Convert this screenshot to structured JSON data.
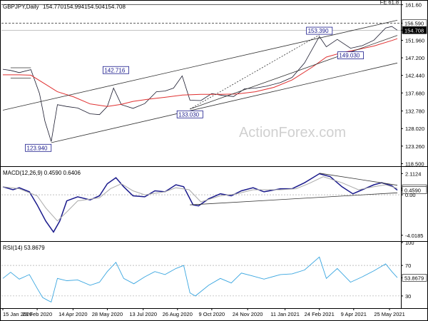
{
  "chart_data": [
    {
      "type": "line",
      "title": "GBPJPY,Daily",
      "ohlc": [
        "154.770",
        "154.994",
        "154.504",
        "154.708"
      ],
      "ylim": [
        118.0,
        162.5
      ],
      "yticks": [
        {
          "v": 161.6,
          "l": "161.60"
        },
        {
          "v": 156.59,
          "l": "156.590"
        },
        {
          "v": 154.708,
          "l": "154.708"
        },
        {
          "v": 151.96,
          "l": "151.960"
        },
        {
          "v": 147.2,
          "l": "147.200"
        },
        {
          "v": 142.44,
          "l": "142.440"
        },
        {
          "v": 137.68,
          "l": "137.680"
        },
        {
          "v": 132.78,
          "l": "132.780"
        },
        {
          "v": 128.02,
          "l": "128.020"
        },
        {
          "v": 123.26,
          "l": "123.260"
        },
        {
          "v": 118.5,
          "l": "118.500"
        }
      ],
      "annotations": [
        {
          "label": "123.940",
          "x": "2020-03-17",
          "y": 123.94
        },
        {
          "label": "142.716",
          "x": "2020-06-08",
          "y": 142.716
        },
        {
          "label": "133.030",
          "x": "2020-09-11",
          "y": 133.03
        },
        {
          "label": "153.390",
          "x": "2021-02-24",
          "y": 153.39
        },
        {
          "label": "149.030",
          "x": "2021-04-05",
          "y": 149.03
        },
        {
          "label": "FE 61.8",
          "y": 161.6
        }
      ],
      "watermark": "ActionForex.com",
      "series": [
        {
          "kind": "price",
          "values": [
            [
              "2020-01-15",
              144.1
            ],
            [
              "2020-01-25",
              143.8
            ],
            [
              "2020-02-05",
              143.2
            ],
            [
              "2020-02-20",
              144.0
            ],
            [
              "2020-03-02",
              137.5
            ],
            [
              "2020-03-09",
              130.0
            ],
            [
              "2020-03-17",
              124.5
            ],
            [
              "2020-03-25",
              134.5
            ],
            [
              "2020-04-06",
              134.0
            ],
            [
              "2020-04-20",
              133.6
            ],
            [
              "2020-05-06",
              132.0
            ],
            [
              "2020-05-18",
              131.8
            ],
            [
              "2020-05-28",
              134.0
            ],
            [
              "2020-06-05",
              139.0
            ],
            [
              "2020-06-15",
              134.5
            ],
            [
              "2020-06-30",
              133.5
            ],
            [
              "2020-07-15",
              134.8
            ],
            [
              "2020-07-30",
              138.0
            ],
            [
              "2020-08-10",
              138.2
            ],
            [
              "2020-08-21",
              139.0
            ],
            [
              "2020-09-01",
              142.3
            ],
            [
              "2020-09-11",
              135.7
            ],
            [
              "2020-09-25",
              135.6
            ],
            [
              "2020-10-09",
              137.5
            ],
            [
              "2020-10-23",
              137.0
            ],
            [
              "2020-11-06",
              136.7
            ],
            [
              "2020-11-20",
              138.8
            ],
            [
              "2020-12-04",
              139.0
            ],
            [
              "2020-12-18",
              139.5
            ],
            [
              "2021-01-05",
              140.5
            ],
            [
              "2021-01-20",
              141.9
            ],
            [
              "2021-02-05",
              145.8
            ],
            [
              "2021-02-24",
              153.0
            ],
            [
              "2021-03-05",
              150.2
            ],
            [
              "2021-03-19",
              152.2
            ],
            [
              "2021-04-05",
              149.8
            ],
            [
              "2021-04-20",
              150.5
            ],
            [
              "2021-05-05",
              152.0
            ],
            [
              "2021-05-20",
              155.3
            ],
            [
              "2021-05-28",
              155.7
            ],
            [
              "2021-06-04",
              154.7
            ]
          ]
        },
        {
          "kind": "ma",
          "values": [
            [
              "2020-01-15",
              142.6
            ],
            [
              "2020-02-05",
              142.6
            ],
            [
              "2020-02-20",
              142.5
            ],
            [
              "2020-03-10",
              140.0
            ],
            [
              "2020-03-25",
              138.0
            ],
            [
              "2020-04-15",
              136.6
            ],
            [
              "2020-05-06",
              134.7
            ],
            [
              "2020-05-28",
              134.0
            ],
            [
              "2020-06-15",
              134.6
            ],
            [
              "2020-06-30",
              135.4
            ],
            [
              "2020-07-20",
              136.0
            ],
            [
              "2020-08-10",
              136.5
            ],
            [
              "2020-09-01",
              137.1
            ],
            [
              "2020-09-25",
              137.3
            ],
            [
              "2020-10-20",
              137.3
            ],
            [
              "2020-11-10",
              137.4
            ],
            [
              "2020-12-04",
              138.0
            ],
            [
              "2020-12-28",
              139.2
            ],
            [
              "2021-01-20",
              141.2
            ],
            [
              "2021-02-15",
              144.7
            ],
            [
              "2021-03-05",
              147.4
            ],
            [
              "2021-03-25",
              148.6
            ],
            [
              "2021-04-15",
              149.5
            ],
            [
              "2021-05-05",
              150.4
            ],
            [
              "2021-05-28",
              151.9
            ],
            [
              "2021-06-04",
              152.4
            ]
          ]
        },
        {
          "kind": "channel-top",
          "values": [
            [
              "2020-01-15",
              133.0
            ],
            [
              "2021-06-04",
              157.4
            ]
          ]
        },
        {
          "kind": "channel-bottom",
          "values": [
            [
              "2020-03-17",
              124.2
            ],
            [
              "2021-06-04",
              145.8
            ]
          ]
        },
        {
          "kind": "mid-channel",
          "values": [
            [
              "2020-09-11",
              133.3
            ],
            [
              "2021-06-04",
              153.3
            ]
          ]
        },
        {
          "kind": "dotted",
          "values": [
            [
              "2020-09-11",
              133.3
            ],
            [
              "2021-02-24",
              153.4
            ]
          ]
        },
        {
          "kind": "level",
          "values": [
            [
              "2020-01-25",
              144.5
            ],
            [
              "2020-02-20",
              144.5
            ]
          ]
        },
        {
          "kind": "level",
          "values": [
            [
              "2020-01-25",
              141.7
            ],
            [
              "2020-02-20",
              141.7
            ]
          ]
        }
      ]
    },
    {
      "type": "line",
      "title": "MACD(12,26,9) 0.4590 0.6406",
      "ylim": [
        -4.6,
        2.7
      ],
      "yticks": [
        {
          "v": 2.1124,
          "l": "2.1124"
        },
        {
          "v": 0.6406,
          "l": "0.6406"
        },
        {
          "v": 0.459,
          "l": "0.4590"
        },
        {
          "v": 0.0,
          "l": "0.00"
        },
        {
          "v": -4.0185,
          "l": "-4.0185"
        }
      ],
      "series": [
        {
          "kind": "macd",
          "values": [
            [
              "2020-01-15",
              0.8
            ],
            [
              "2020-01-28",
              0.5
            ],
            [
              "2020-02-05",
              0.7
            ],
            [
              "2020-02-18",
              0.3
            ],
            [
              "2020-02-28",
              -1.0
            ],
            [
              "2020-03-10",
              -2.6
            ],
            [
              "2020-03-20",
              -3.7
            ],
            [
              "2020-03-28",
              -2.6
            ],
            [
              "2020-04-06",
              -0.6
            ],
            [
              "2020-04-20",
              -0.2
            ],
            [
              "2020-05-06",
              -0.5
            ],
            [
              "2020-05-18",
              -0.1
            ],
            [
              "2020-05-28",
              1.1
            ],
            [
              "2020-06-08",
              1.7
            ],
            [
              "2020-06-18",
              0.8
            ],
            [
              "2020-06-30",
              -0.1
            ],
            [
              "2020-07-15",
              -0.2
            ],
            [
              "2020-07-28",
              0.4
            ],
            [
              "2020-08-10",
              0.3
            ],
            [
              "2020-08-24",
              1.0
            ],
            [
              "2020-09-03",
              0.8
            ],
            [
              "2020-09-15",
              -1.0
            ],
            [
              "2020-09-22",
              -1.1
            ],
            [
              "2020-10-05",
              -0.4
            ],
            [
              "2020-10-20",
              0.1
            ],
            [
              "2020-11-03",
              -0.1
            ],
            [
              "2020-11-16",
              0.4
            ],
            [
              "2020-12-01",
              0.7
            ],
            [
              "2020-12-15",
              0.3
            ],
            [
              "2021-01-05",
              0.6
            ],
            [
              "2021-01-20",
              0.6
            ],
            [
              "2021-02-05",
              1.2
            ],
            [
              "2021-02-24",
              2.1
            ],
            [
              "2021-03-10",
              1.8
            ],
            [
              "2021-03-25",
              0.8
            ],
            [
              "2021-04-08",
              0.1
            ],
            [
              "2021-04-20",
              0.5
            ],
            [
              "2021-05-05",
              1.0
            ],
            [
              "2021-05-15",
              1.2
            ],
            [
              "2021-05-28",
              0.9
            ],
            [
              "2021-06-04",
              0.46
            ]
          ]
        },
        {
          "kind": "signal",
          "values": [
            [
              "2020-01-15",
              0.8
            ],
            [
              "2020-02-05",
              0.6
            ],
            [
              "2020-02-28",
              -0.1
            ],
            [
              "2020-03-10",
              -1.3
            ],
            [
              "2020-03-25",
              -2.6
            ],
            [
              "2020-04-06",
              -1.7
            ],
            [
              "2020-04-20",
              -0.6
            ],
            [
              "2020-05-18",
              -0.3
            ],
            [
              "2020-06-01",
              0.6
            ],
            [
              "2020-06-15",
              1.1
            ],
            [
              "2020-06-30",
              0.4
            ],
            [
              "2020-07-15",
              0.0
            ],
            [
              "2020-08-10",
              0.3
            ],
            [
              "2020-08-24",
              0.7
            ],
            [
              "2020-09-10",
              0.5
            ],
            [
              "2020-09-25",
              -0.7
            ],
            [
              "2020-10-20",
              -0.1
            ],
            [
              "2020-11-10",
              0.1
            ],
            [
              "2020-12-01",
              0.5
            ],
            [
              "2021-01-05",
              0.5
            ],
            [
              "2021-01-25",
              0.6
            ],
            [
              "2021-02-10",
              1.1
            ],
            [
              "2021-03-01",
              1.8
            ],
            [
              "2021-03-25",
              1.2
            ],
            [
              "2021-04-15",
              0.5
            ],
            [
              "2021-05-05",
              0.8
            ],
            [
              "2021-05-20",
              1.0
            ],
            [
              "2021-06-04",
              0.64
            ]
          ]
        },
        {
          "kind": "trend",
          "values": [
            [
              "2020-09-11",
              -1.0
            ],
            [
              "2021-06-04",
              0.2
            ]
          ]
        },
        {
          "kind": "trend",
          "values": [
            [
              "2021-02-24",
              2.15
            ],
            [
              "2021-06-04",
              0.95
            ]
          ]
        }
      ]
    },
    {
      "type": "line",
      "title": "RSI(14) 53.8679",
      "ylim": [
        14,
        100
      ],
      "yticks": [
        {
          "v": 100,
          "l": "100"
        },
        {
          "v": 70,
          "l": "70"
        },
        {
          "v": 53.8679,
          "l": "53.8679"
        },
        {
          "v": 30,
          "l": "30"
        }
      ],
      "series": [
        {
          "kind": "rsi",
          "values": [
            [
              "2020-01-15",
              53
            ],
            [
              "2020-01-25",
              61
            ],
            [
              "2020-02-05",
              52
            ],
            [
              "2020-02-18",
              58
            ],
            [
              "2020-02-28",
              40
            ],
            [
              "2020-03-06",
              28
            ],
            [
              "2020-03-13",
              24
            ],
            [
              "2020-03-17",
              22
            ],
            [
              "2020-03-25",
              53
            ],
            [
              "2020-04-06",
              50
            ],
            [
              "2020-04-20",
              51
            ],
            [
              "2020-05-06",
              44
            ],
            [
              "2020-05-18",
              48
            ],
            [
              "2020-05-28",
              62
            ],
            [
              "2020-06-08",
              74
            ],
            [
              "2020-06-18",
              53
            ],
            [
              "2020-07-01",
              46
            ],
            [
              "2020-07-15",
              55
            ],
            [
              "2020-07-28",
              62
            ],
            [
              "2020-08-10",
              58
            ],
            [
              "2020-08-24",
              66
            ],
            [
              "2020-09-03",
              70
            ],
            [
              "2020-09-11",
              34
            ],
            [
              "2020-09-18",
              30
            ],
            [
              "2020-10-05",
              44
            ],
            [
              "2020-10-20",
              53
            ],
            [
              "2020-11-03",
              47
            ],
            [
              "2020-11-16",
              60
            ],
            [
              "2020-12-01",
              56
            ],
            [
              "2020-12-15",
              52
            ],
            [
              "2021-01-05",
              58
            ],
            [
              "2021-01-20",
              59
            ],
            [
              "2021-02-05",
              64
            ],
            [
              "2021-02-24",
              81
            ],
            [
              "2021-03-05",
              53
            ],
            [
              "2021-03-19",
              66
            ],
            [
              "2021-04-05",
              48
            ],
            [
              "2021-04-20",
              55
            ],
            [
              "2021-05-05",
              63
            ],
            [
              "2021-05-20",
              72
            ],
            [
              "2021-05-28",
              62
            ],
            [
              "2021-06-04",
              54
            ]
          ]
        }
      ]
    }
  ],
  "x_labels": [
    {
      "d": "2020-01-15",
      "l": "15 Jan 2020"
    },
    {
      "d": "2020-02-28",
      "l": "28 Feb 2020"
    },
    {
      "d": "2020-04-14",
      "l": "14 Apr 2020"
    },
    {
      "d": "2020-05-28",
      "l": "28 May 2020"
    },
    {
      "d": "2020-07-13",
      "l": "13 Jul 2020"
    },
    {
      "d": "2020-08-26",
      "l": "26 Aug 2020"
    },
    {
      "d": "2020-10-09",
      "l": "9 Oct 2020"
    },
    {
      "d": "2020-11-24",
      "l": "24 Nov 2020"
    },
    {
      "d": "2021-01-11",
      "l": "11 Jan 2021"
    },
    {
      "d": "2021-02-24",
      "l": "24 Feb 2021"
    },
    {
      "d": "2021-04-09",
      "l": "9 Apr 2021"
    },
    {
      "d": "2021-05-25",
      "l": "25 May 2021"
    }
  ],
  "colors": {
    "price": "#1a1a2e",
    "ma": "#e03030",
    "line": "#333333",
    "macd": "#1a1a8c",
    "signal": "#aaaaaa",
    "rsi": "#3aa6e0",
    "label_border": "#1a1a8c",
    "price_tag_bg": "#000000",
    "watermark": "#d0d0d0"
  }
}
